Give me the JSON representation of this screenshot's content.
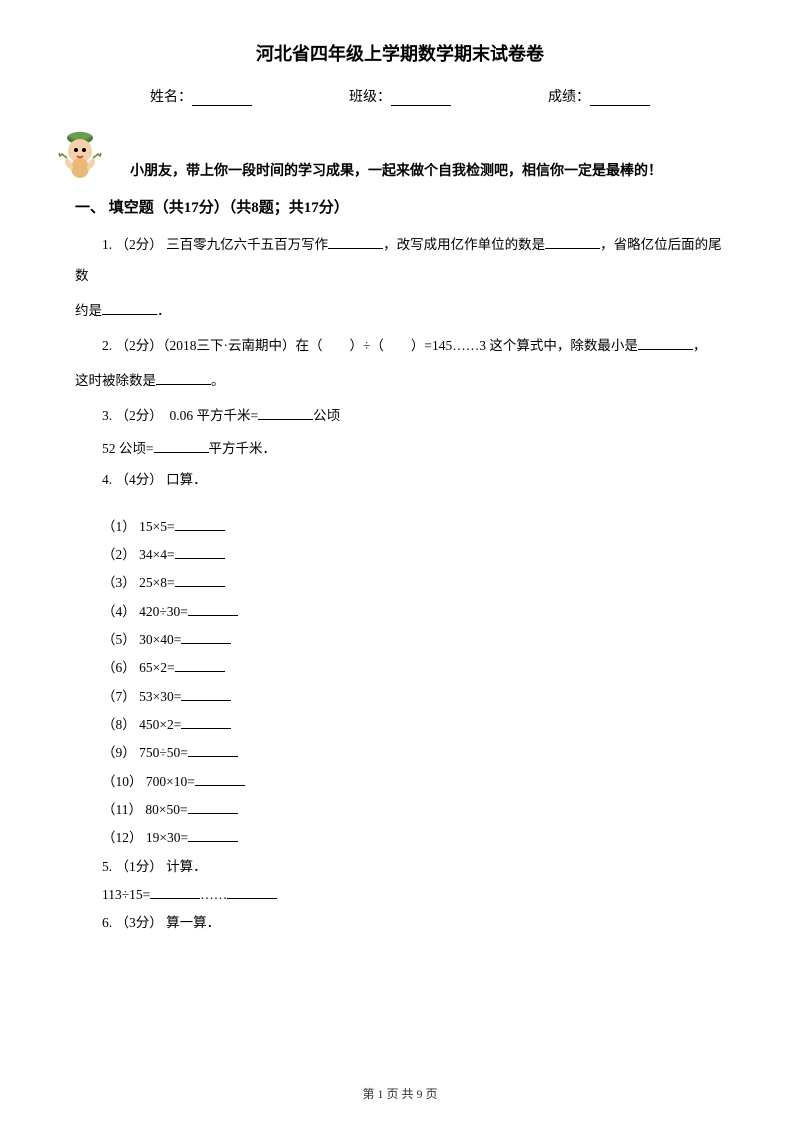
{
  "title": "河北省四年级上学期数学期末试卷卷",
  "info": {
    "name_label": "姓名：",
    "class_label": "班级：",
    "score_label": "成绩："
  },
  "intro": "小朋友，带上你一段时间的学习成果，一起来做个自我检测吧，相信你一定是最棒的！",
  "section1": {
    "title": "一、 填空题（共17分）（共8题；共17分）",
    "q1_prefix": "1. （2分） 三百零九亿六千五百万写作",
    "q1_mid1": "，改写成用亿作单位的数是",
    "q1_mid2": "，省略亿位后面的尾数",
    "q1_end": "约是",
    "q1_period": "．",
    "q2_prefix": "2. （2分）（2018三下·云南期中）在（　　）÷（　　）=145……3 这个算式中，除数最小是",
    "q2_comma": "，",
    "q2_end": "这时被除数是",
    "q2_period": "。",
    "q3_line1_prefix": "3. （2分）　0.06 平方千米=",
    "q3_line1_suffix": "公顷",
    "q3_line2_prefix": "52 公顷=",
    "q3_line2_suffix": "平方千米．",
    "q4_title": "4. （4分） 口算．",
    "q4_items": [
      "（1） 15×5=",
      "（2） 34×4=",
      "（3） 25×8=",
      "（4） 420÷30=",
      "（5） 30×40=",
      "（6） 65×2=",
      "（7） 53×30=",
      "（8） 450×2=",
      "（9） 750÷50=",
      "（10） 700×10=",
      "（11） 80×50=",
      "（12） 19×30="
    ],
    "q5_title": "5. （1分） 计算．",
    "q5_expr": "113÷15=",
    "q5_dots": "……",
    "q6_title": "6. （3分） 算一算．"
  },
  "footer": "第 1 页 共 9 页"
}
